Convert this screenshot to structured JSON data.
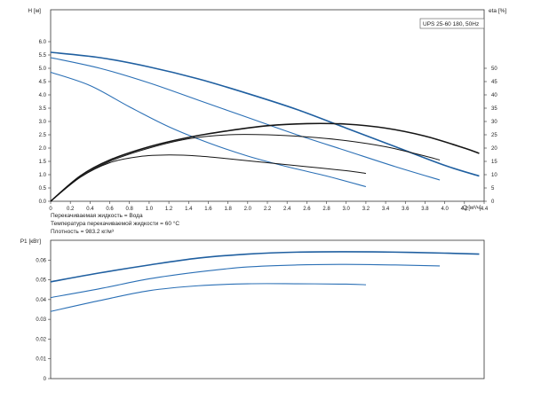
{
  "chart_data": [
    {
      "type": "line",
      "title": "UPS 25-60 180, 50Hz",
      "xlabel": "Q [м³/ч]",
      "ylabel": "H [м]",
      "y2label": "eta [%]",
      "xlim": [
        0,
        4.4
      ],
      "ylim": [
        0,
        6.0
      ],
      "y2lim": [
        0,
        50
      ],
      "x_ticks": [
        "0",
        "0.2",
        "0.4",
        "0.6",
        "0.8",
        "1.0",
        "1.2",
        "1.4",
        "1.6",
        "1.8",
        "2.0",
        "2.2",
        "2.4",
        "2.6",
        "2.8",
        "3.0",
        "3.2",
        "3.4",
        "3.6",
        "3.8",
        "4.0",
        "4.2",
        "4.4"
      ],
      "y_ticks": [
        "0.0",
        "0.5",
        "1.0",
        "1.5",
        "2.0",
        "2.5",
        "3.0",
        "3.5",
        "4.0",
        "4.5",
        "5.0",
        "5.5",
        "6.0"
      ],
      "y2_ticks": [
        "0",
        "5",
        "10",
        "15",
        "20",
        "25",
        "30",
        "35",
        "40",
        "45",
        "50"
      ],
      "grid": false,
      "series": [
        {
          "kind": "head",
          "color": "#1f5fa0",
          "width": 1.6,
          "x": [
            0,
            0.5,
            1.0,
            1.5,
            2.0,
            2.5,
            3.0,
            3.5,
            4.0,
            4.35
          ],
          "y": [
            5.6,
            5.4,
            5.05,
            4.6,
            4.05,
            3.45,
            2.75,
            2.05,
            1.35,
            0.95
          ]
        },
        {
          "kind": "head",
          "color": "#2a6fb5",
          "width": 1.1,
          "x": [
            0,
            0.5,
            1.0,
            1.5,
            2.0,
            2.5,
            3.0,
            3.5,
            3.95
          ],
          "y": [
            5.4,
            5.0,
            4.45,
            3.8,
            3.15,
            2.5,
            1.9,
            1.3,
            0.8
          ]
        },
        {
          "kind": "head",
          "color": "#2a6fb5",
          "width": 1.1,
          "x": [
            0,
            0.4,
            0.8,
            1.2,
            1.6,
            2.0,
            2.4,
            2.8,
            3.2
          ],
          "y": [
            4.85,
            4.35,
            3.55,
            2.8,
            2.2,
            1.7,
            1.3,
            0.95,
            0.55
          ]
        },
        {
          "kind": "eta",
          "color": "#151515",
          "width": 1.6,
          "x": [
            0,
            0.3,
            0.6,
            1.0,
            1.4,
            1.8,
            2.2,
            2.6,
            3.0,
            3.4,
            3.8,
            4.2,
            4.35
          ],
          "y": [
            0,
            9.5,
            15.5,
            20.5,
            24,
            26.5,
            28.4,
            29.2,
            29.0,
            27.5,
            24.5,
            20,
            18
          ]
        },
        {
          "kind": "eta",
          "color": "#151515",
          "width": 1.0,
          "x": [
            0,
            0.3,
            0.6,
            1.0,
            1.4,
            1.8,
            2.2,
            2.6,
            3.0,
            3.4,
            3.8,
            3.95
          ],
          "y": [
            0,
            9,
            15,
            20,
            23.5,
            25,
            25,
            24.2,
            22.8,
            20.5,
            17.0,
            15.5
          ]
        },
        {
          "kind": "eta",
          "color": "#151515",
          "width": 1.0,
          "x": [
            0,
            0.3,
            0.6,
            0.9,
            1.2,
            1.5,
            1.8,
            2.2,
            2.6,
            3.0,
            3.2
          ],
          "y": [
            0,
            9,
            14.5,
            16.8,
            17.4,
            17.0,
            16.0,
            14.5,
            13.0,
            11.5,
            10.5
          ]
        }
      ]
    },
    {
      "type": "line",
      "xlabel": "",
      "ylabel": "P1 [кВт]",
      "xlim": [
        0,
        4.4
      ],
      "ylim": [
        0,
        0.07
      ],
      "y_ticks": [
        "0",
        "0.01",
        "0.02",
        "0.03",
        "0.04",
        "0.05",
        "0.06"
      ],
      "grid": false,
      "series": [
        {
          "color": "#1f5fa0",
          "width": 1.6,
          "x": [
            0,
            0.5,
            1.0,
            1.5,
            2.0,
            2.5,
            3.0,
            3.5,
            4.0,
            4.35
          ],
          "y": [
            0.049,
            0.0535,
            0.0575,
            0.061,
            0.063,
            0.064,
            0.0642,
            0.064,
            0.0635,
            0.063
          ]
        },
        {
          "color": "#2a6fb5",
          "width": 1.1,
          "x": [
            0,
            0.5,
            1.0,
            1.5,
            2.0,
            2.5,
            3.0,
            3.5,
            3.95
          ],
          "y": [
            0.041,
            0.0455,
            0.0505,
            0.054,
            0.0565,
            0.0575,
            0.0578,
            0.0575,
            0.057
          ]
        },
        {
          "color": "#2a6fb5",
          "width": 1.1,
          "x": [
            0,
            0.5,
            1.0,
            1.5,
            2.0,
            2.5,
            3.0,
            3.2
          ],
          "y": [
            0.034,
            0.0395,
            0.0445,
            0.047,
            0.048,
            0.048,
            0.0478,
            0.0475
          ]
        }
      ]
    }
  ],
  "notes": {
    "liquid": "Перекачиваемая жидкость = Вода",
    "temperature": "Температура перекачиваемой жидкости = 60 °C",
    "density": "Плотность = 983.2 кг/м³"
  }
}
